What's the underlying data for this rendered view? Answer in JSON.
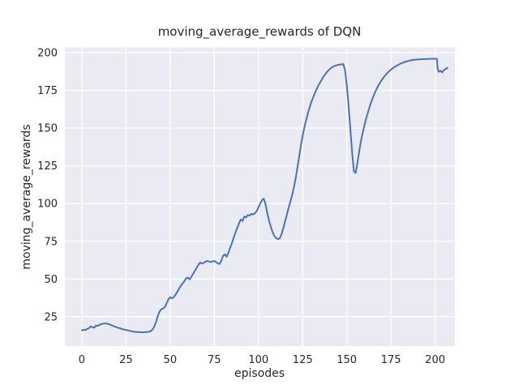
{
  "figure": {
    "title": "moving_average_rewards of DQN"
  },
  "chart_data": {
    "type": "line",
    "title": "moving_average_rewards of DQN",
    "xlabel": "episodes",
    "ylabel": "moving_average_rewards",
    "x_ticks": [
      0,
      25,
      50,
      75,
      100,
      125,
      150,
      175,
      200
    ],
    "y_ticks": [
      25,
      50,
      75,
      100,
      125,
      150,
      175,
      200
    ],
    "xlim": [
      -9.6,
      211.2
    ],
    "ylim": [
      5.6,
      203.5
    ],
    "grid": true,
    "legend": "none",
    "style": {
      "figure_background": "#ffffff",
      "axes_background": "#eaeaf2",
      "grid_color": "#ffffff",
      "line_color": "#4c72b0",
      "text_color": "#262626"
    },
    "series": [
      {
        "name": "moving_average_rewards",
        "points": [
          [
            0,
            16
          ],
          [
            1,
            16.4
          ],
          [
            2,
            16.2
          ],
          [
            3,
            17
          ],
          [
            4,
            17.4
          ],
          [
            5,
            18.6
          ],
          [
            6,
            18.2
          ],
          [
            7,
            17.7
          ],
          [
            8,
            19.2
          ],
          [
            9,
            19
          ],
          [
            10,
            19.6
          ],
          [
            11,
            20.2
          ],
          [
            12,
            20.4
          ],
          [
            13,
            20.6
          ],
          [
            14,
            20.5
          ],
          [
            15,
            20.2
          ],
          [
            16,
            19.8
          ],
          [
            17,
            19.3
          ],
          [
            18,
            18.8
          ],
          [
            19,
            18.3
          ],
          [
            20,
            17.9
          ],
          [
            21,
            17.5
          ],
          [
            22,
            17.2
          ],
          [
            23,
            16.8
          ],
          [
            24,
            16.5
          ],
          [
            25,
            16.2
          ],
          [
            26,
            16
          ],
          [
            27,
            15.7
          ],
          [
            28,
            15.5
          ],
          [
            29,
            15.2
          ],
          [
            30,
            15
          ],
          [
            31,
            14.9
          ],
          [
            32,
            14.8
          ],
          [
            33,
            14.8
          ],
          [
            34,
            14.7
          ],
          [
            35,
            14.7
          ],
          [
            36,
            14.8
          ],
          [
            37,
            14.9
          ],
          [
            38,
            15.1
          ],
          [
            39,
            15.5
          ],
          [
            40,
            16.5
          ],
          [
            41,
            18.5
          ],
          [
            42,
            21.5
          ],
          [
            43,
            25.5
          ],
          [
            44,
            28.5
          ],
          [
            45,
            30
          ],
          [
            46,
            30.5
          ],
          [
            47,
            31.5
          ],
          [
            48,
            34
          ],
          [
            49,
            36.5
          ],
          [
            50,
            38
          ],
          [
            51,
            37.2
          ],
          [
            52,
            38
          ],
          [
            53,
            39.5
          ],
          [
            54,
            41.5
          ],
          [
            55,
            43.5
          ],
          [
            56,
            45.5
          ],
          [
            57,
            47
          ],
          [
            58,
            48.5
          ],
          [
            59,
            50.5
          ],
          [
            60,
            51
          ],
          [
            61,
            49.8
          ],
          [
            62,
            51.5
          ],
          [
            63,
            53.5
          ],
          [
            64,
            55.5
          ],
          [
            65,
            57.5
          ],
          [
            66,
            59.5
          ],
          [
            67,
            61
          ],
          [
            68,
            60.2
          ],
          [
            69,
            60.8
          ],
          [
            70,
            61.5
          ],
          [
            71,
            62
          ],
          [
            72,
            61.6
          ],
          [
            73,
            61.3
          ],
          [
            74,
            61.7
          ],
          [
            75,
            62
          ],
          [
            76,
            61.2
          ],
          [
            77,
            60.4
          ],
          [
            78,
            60
          ],
          [
            79,
            62.3
          ],
          [
            80,
            65.5
          ],
          [
            81,
            66.3
          ],
          [
            82,
            64.8
          ],
          [
            83,
            67.5
          ],
          [
            84,
            70.8
          ],
          [
            85,
            74
          ],
          [
            86,
            77.5
          ],
          [
            87,
            81
          ],
          [
            88,
            84
          ],
          [
            89,
            87
          ],
          [
            90,
            89.5
          ],
          [
            91,
            88.5
          ],
          [
            92,
            91.5
          ],
          [
            93,
            90.8
          ],
          [
            94,
            92.5
          ],
          [
            95,
            92
          ],
          [
            96,
            93.2
          ],
          [
            97,
            92.8
          ],
          [
            98,
            93.6
          ],
          [
            99,
            95
          ],
          [
            100,
            97.5
          ],
          [
            101,
            100.2
          ],
          [
            102,
            102.3
          ],
          [
            103,
            103.3
          ],
          [
            104,
            99.5
          ],
          [
            105,
            93.5
          ],
          [
            106,
            88.5
          ],
          [
            107,
            84.5
          ],
          [
            108,
            81
          ],
          [
            109,
            78.5
          ],
          [
            110,
            77.2
          ],
          [
            111,
            76.4
          ],
          [
            112,
            77
          ],
          [
            113,
            79.5
          ],
          [
            114,
            83.5
          ],
          [
            115,
            88
          ],
          [
            116,
            92.5
          ],
          [
            117,
            97
          ],
          [
            118,
            101
          ],
          [
            119,
            105.5
          ],
          [
            120,
            110.5
          ],
          [
            121,
            116.5
          ],
          [
            122,
            123.5
          ],
          [
            123,
            131
          ],
          [
            124,
            138.5
          ],
          [
            125,
            145
          ],
          [
            126,
            150.5
          ],
          [
            127,
            155.5
          ],
          [
            128,
            160
          ],
          [
            129,
            164
          ],
          [
            130,
            167.5
          ],
          [
            131,
            170.5
          ],
          [
            132,
            173.5
          ],
          [
            133,
            176
          ],
          [
            134,
            178.5
          ],
          [
            135,
            180.5
          ],
          [
            136,
            182.5
          ],
          [
            137,
            184.5
          ],
          [
            138,
            186
          ],
          [
            139,
            187.5
          ],
          [
            140,
            188.8
          ],
          [
            141,
            189.8
          ],
          [
            142,
            190.6
          ],
          [
            143,
            191.2
          ],
          [
            144,
            191.6
          ],
          [
            145,
            191.9
          ],
          [
            146,
            192.1
          ],
          [
            147,
            192.3
          ],
          [
            148,
            192.4
          ],
          [
            149,
            188.5
          ],
          [
            150,
            178.5
          ],
          [
            151,
            165
          ],
          [
            152,
            149.5
          ],
          [
            153,
            134
          ],
          [
            154,
            121.5
          ],
          [
            155,
            120.3
          ],
          [
            156,
            127
          ],
          [
            157,
            134.5
          ],
          [
            158,
            141.5
          ],
          [
            159,
            147
          ],
          [
            160,
            152
          ],
          [
            161,
            156.5
          ],
          [
            162,
            160.5
          ],
          [
            163,
            164.5
          ],
          [
            164,
            168
          ],
          [
            165,
            171
          ],
          [
            166,
            173.8
          ],
          [
            167,
            176.3
          ],
          [
            168,
            178.5
          ],
          [
            169,
            180.5
          ],
          [
            170,
            182.3
          ],
          [
            171,
            183.9
          ],
          [
            172,
            185.3
          ],
          [
            173,
            186.6
          ],
          [
            174,
            187.8
          ],
          [
            175,
            188.8
          ],
          [
            176,
            189.7
          ],
          [
            177,
            190.5
          ],
          [
            178,
            191.2
          ],
          [
            179,
            191.9
          ],
          [
            180,
            192.5
          ],
          [
            181,
            193
          ],
          [
            182,
            193.5
          ],
          [
            183,
            193.9
          ],
          [
            184,
            194.3
          ],
          [
            185,
            194.6
          ],
          [
            186,
            194.9
          ],
          [
            187,
            195.1
          ],
          [
            188,
            195.3
          ],
          [
            189,
            195.4
          ],
          [
            190,
            195.5
          ],
          [
            191,
            195.6
          ],
          [
            192,
            195.7
          ],
          [
            193,
            195.7
          ],
          [
            194,
            195.8
          ],
          [
            195,
            195.8
          ],
          [
            196,
            195.9
          ],
          [
            197,
            195.9
          ],
          [
            198,
            195.9
          ],
          [
            199,
            196
          ],
          [
            200,
            196
          ],
          [
            201,
            195.9
          ],
          [
            201.4,
            189.5
          ],
          [
            202,
            187.3
          ],
          [
            203,
            188
          ],
          [
            204,
            186.9
          ],
          [
            205,
            188.6
          ],
          [
            206,
            189.2
          ],
          [
            207,
            190
          ]
        ]
      }
    ]
  }
}
